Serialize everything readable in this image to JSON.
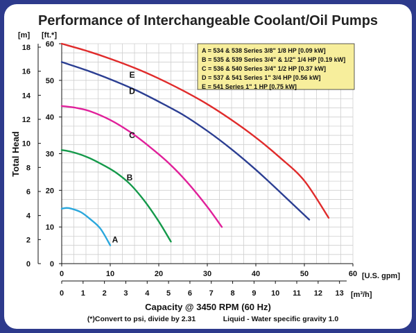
{
  "colors": {
    "background": "#2d3a8c",
    "panel": "#ffffff",
    "legend_fill": "#f7ee9c",
    "legend_border": "#333333"
  },
  "chart_data": {
    "type": "line",
    "title": "Performance of Interchangeable Coolant/Oil Pumps",
    "ylabel": "Total Head",
    "xlabel": "Capacity @ 3450 RPM (60 Hz)",
    "x_unit": "[U.S. gpm]",
    "x2_unit": "[m³/h]",
    "y_unit_m": "[m]",
    "y_unit_ft": "[ft.*]",
    "footnote": "(*)Convert to psi, divide by 2.31",
    "footnote2": "Liquid - Water specific gravity 1.0",
    "xlim": [
      0,
      60
    ],
    "ylim": [
      0,
      60
    ],
    "x_ticks": [
      0,
      10,
      20,
      30,
      40,
      50,
      60
    ],
    "x2_ticks": [
      0,
      1,
      2,
      3,
      4,
      5,
      6,
      7,
      8,
      9,
      10,
      11,
      12,
      13
    ],
    "y_ticks_ft": [
      0,
      10,
      20,
      30,
      40,
      50,
      60
    ],
    "y_ticks_m": [
      0,
      2,
      4,
      6,
      8,
      10,
      12,
      14,
      16,
      18
    ],
    "grid": true,
    "legend_position": "top-right",
    "legend": [
      "A = 534 & 538 Series 3/8\" 1/8 HP [0.09 kW]",
      "B = 535 & 539 Series 3/4\" & 1/2\" 1/4 HP [0.19 kW]",
      "C = 536 & 540 Series 3/4\" 1/2 HP [0.37 kW]",
      "D = 537 & 541 Series 1\" 3/4 HP [0.56 kW]",
      "E = 541 Series 1\" 1 HP [0.75 kW]"
    ],
    "series": [
      {
        "name": "A",
        "color": "#2aa7dc",
        "x": [
          0,
          1,
          2,
          4,
          6,
          8,
          10
        ],
        "y": [
          15,
          15.2,
          15,
          14,
          12,
          9.5,
          5
        ],
        "label_at": [
          11,
          6.5
        ]
      },
      {
        "name": "B",
        "color": "#14994a",
        "x": [
          0,
          2,
          5,
          8,
          11,
          14,
          17,
          20,
          22.5
        ],
        "y": [
          31,
          30.5,
          29.2,
          27.3,
          25,
          21.8,
          17.2,
          11.5,
          6
        ],
        "label_at": [
          14,
          23.5
        ]
      },
      {
        "name": "C",
        "color": "#e0209a",
        "x": [
          0,
          3,
          6,
          10,
          14,
          18,
          22,
          26,
          30,
          33
        ],
        "y": [
          43,
          42.5,
          41.5,
          39.2,
          36,
          32,
          27.5,
          22,
          15.5,
          10
        ],
        "label_at": [
          14.5,
          35
        ]
      },
      {
        "name": "D",
        "color": "#2b3e92",
        "x": [
          0,
          5,
          10,
          15,
          20,
          25,
          30,
          35,
          40,
          45,
          51
        ],
        "y": [
          55,
          52.8,
          50.3,
          47.5,
          44.2,
          40.6,
          36.2,
          31.2,
          25.6,
          19.5,
          12
        ],
        "label_at": [
          14.5,
          47
        ]
      },
      {
        "name": "E",
        "color": "#e02b2b",
        "x": [
          0,
          5,
          10,
          15,
          20,
          25,
          30,
          35,
          40,
          45,
          50,
          55
        ],
        "y": [
          60,
          58.1,
          55.9,
          53.4,
          50.5,
          47.2,
          43.5,
          39.2,
          34.4,
          28.9,
          22.6,
          12.5
        ],
        "label_at": [
          14.5,
          51.5
        ]
      }
    ]
  }
}
